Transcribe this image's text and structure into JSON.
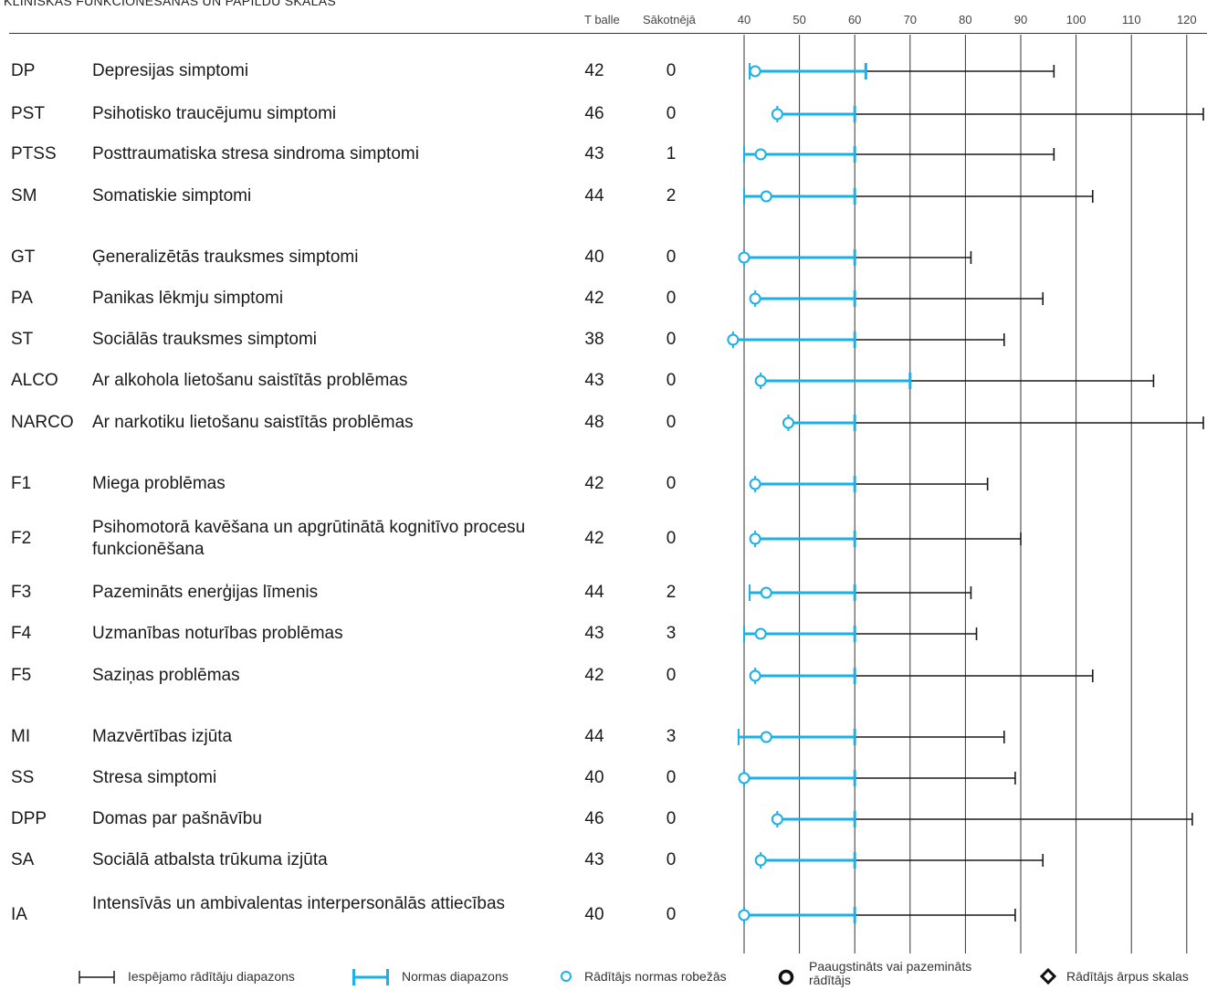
{
  "title": "KLĪNISKĀS FUNKCIONĒŠANAS UN PAPILDU SKALAS",
  "headers": {
    "t_score": "T balle",
    "baseline": "Sākotnējā"
  },
  "colors": {
    "normal": "#1ab0e8",
    "range": "#1a1a1a",
    "grid": "#333333"
  },
  "chart_data": {
    "type": "range",
    "x_ticks": [
      40,
      50,
      60,
      70,
      80,
      90,
      100,
      110,
      120
    ],
    "xlim": [
      35,
      122
    ],
    "rows": [
      {
        "code": "DP",
        "name": "Depresijas simptomi",
        "t": 42,
        "baseline": 0,
        "score": 42,
        "norm_low": 41,
        "norm_high": 62,
        "range_low": 41,
        "range_high": 96
      },
      {
        "code": "PST",
        "name": "Psihotisko traucējumu simptomi",
        "t": 46,
        "baseline": 0,
        "score": 46,
        "norm_low": 46,
        "norm_high": 60,
        "range_low": 46,
        "range_high": 123
      },
      {
        "code": "PTSS",
        "name": "Posttraumatiska stresa sindroma simptomi",
        "t": 43,
        "baseline": 1,
        "score": 43,
        "norm_low": 40,
        "norm_high": 60,
        "range_low": 40,
        "range_high": 96
      },
      {
        "code": "SM",
        "name": "Somatiskie simptomi",
        "t": 44,
        "baseline": 2,
        "score": 44,
        "norm_low": 40,
        "norm_high": 60,
        "range_low": 40,
        "range_high": 103
      },
      {
        "code": "GT",
        "name": "Ģeneralizētās trauksmes simptomi",
        "t": 40,
        "baseline": 0,
        "score": 40,
        "norm_low": 40,
        "norm_high": 60,
        "range_low": 40,
        "range_high": 81
      },
      {
        "code": "PA",
        "name": "Panikas lēkmju simptomi",
        "t": 42,
        "baseline": 0,
        "score": 42,
        "norm_low": 42,
        "norm_high": 60,
        "range_low": 42,
        "range_high": 94
      },
      {
        "code": "ST",
        "name": "Sociālās trauksmes simptomi",
        "t": 38,
        "baseline": 0,
        "score": 38,
        "norm_low": 38,
        "norm_high": 60,
        "range_low": 38,
        "range_high": 87
      },
      {
        "code": "ALCO",
        "name": "Ar alkohola lietošanu saistītās problēmas",
        "t": 43,
        "baseline": 0,
        "score": 43,
        "norm_low": 43,
        "norm_high": 70,
        "range_low": 43,
        "range_high": 114
      },
      {
        "code": "NARCO",
        "name": "Ar narkotiku lietošanu saistītās problēmas",
        "t": 48,
        "baseline": 0,
        "score": 48,
        "norm_low": 48,
        "norm_high": 60,
        "range_low": 48,
        "range_high": 123
      },
      {
        "code": "F1",
        "name": "Miega problēmas",
        "t": 42,
        "baseline": 0,
        "score": 42,
        "norm_low": 42,
        "norm_high": 60,
        "range_low": 42,
        "range_high": 84
      },
      {
        "code": "F2",
        "name": "Psihomotorā kavēšana un apgrūtinātā kognitīvo procesu funkcionēšana",
        "t": 42,
        "baseline": 0,
        "score": 42,
        "norm_low": 42,
        "norm_high": 60,
        "range_low": 42,
        "range_high": 90
      },
      {
        "code": "F3",
        "name": "Pazemināts enerģijas līmenis",
        "t": 44,
        "baseline": 2,
        "score": 44,
        "norm_low": 41,
        "norm_high": 60,
        "range_low": 41,
        "range_high": 81
      },
      {
        "code": "F4",
        "name": "Uzmanības noturības problēmas",
        "t": 43,
        "baseline": 3,
        "score": 43,
        "norm_low": 40,
        "norm_high": 60,
        "range_low": 40,
        "range_high": 82
      },
      {
        "code": "F5",
        "name": "Saziņas problēmas",
        "t": 42,
        "baseline": 0,
        "score": 42,
        "norm_low": 42,
        "norm_high": 60,
        "range_low": 42,
        "range_high": 103
      },
      {
        "code": "MI",
        "name": "Mazvērtības izjūta",
        "t": 44,
        "baseline": 3,
        "score": 44,
        "norm_low": 39,
        "norm_high": 60,
        "range_low": 39,
        "range_high": 87
      },
      {
        "code": "SS",
        "name": "Stresa simptomi",
        "t": 40,
        "baseline": 0,
        "score": 40,
        "norm_low": 40,
        "norm_high": 60,
        "range_low": 40,
        "range_high": 89
      },
      {
        "code": "DPP",
        "name": "Domas par pašnāvību",
        "t": 46,
        "baseline": 0,
        "score": 46,
        "norm_low": 46,
        "norm_high": 60,
        "range_low": 46,
        "range_high": 121
      },
      {
        "code": "SA",
        "name": "Sociālā atbalsta trūkuma izjūta",
        "t": 43,
        "baseline": 0,
        "score": 43,
        "norm_low": 43,
        "norm_high": 60,
        "range_low": 43,
        "range_high": 94
      },
      {
        "code": "IA",
        "name": "Intensīvās un ambivalentas interpersonālās attiecības",
        "t": 40,
        "baseline": 0,
        "score": 40,
        "norm_low": 40,
        "norm_high": 60,
        "range_low": 40,
        "range_high": 89
      }
    ]
  },
  "legend": [
    {
      "label": "Iespējamo rādītāju diapazons",
      "icon": "range-bar-icon"
    },
    {
      "label": "Normas diapazons",
      "icon": "norm-bar-icon"
    },
    {
      "label": "Rādītājs normas robežās",
      "icon": "circle-open-icon"
    },
    {
      "label": "Paaugstināts vai pazemināts rādītājs",
      "icon": "circle-bold-icon"
    },
    {
      "label": "Rādītājs ārpus skalas",
      "icon": "diamond-icon"
    }
  ]
}
